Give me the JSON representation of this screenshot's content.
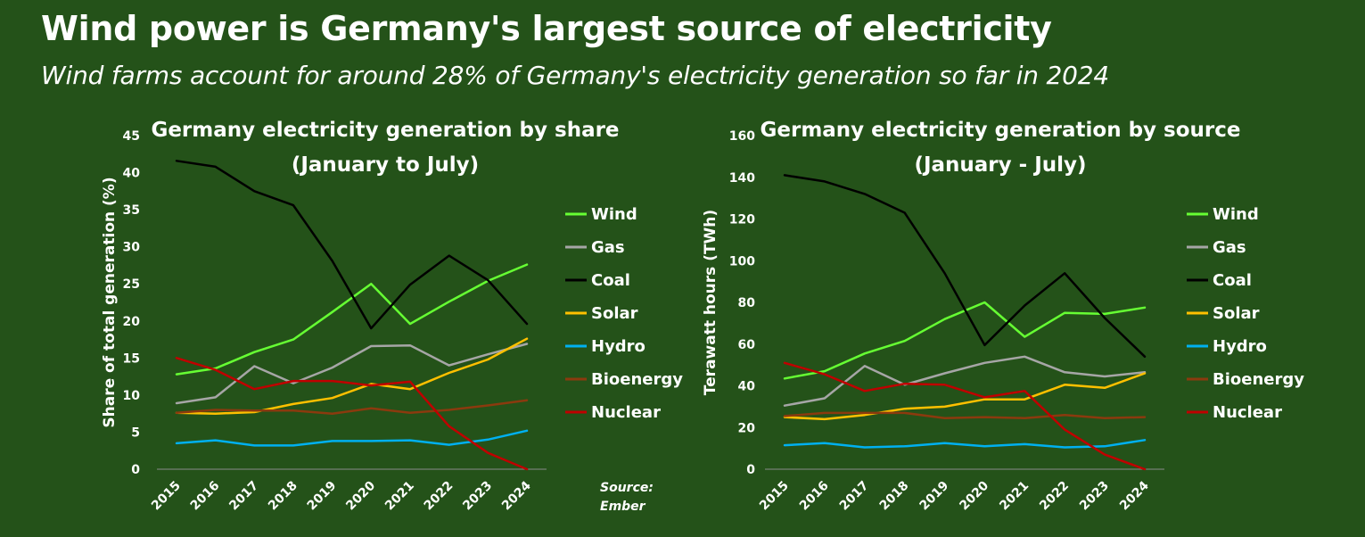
{
  "title": "Wind power is Germany's largest source of electricity",
  "subtitle": "Wind farms account for around 28% of Germany's electricity generation so far in 2024",
  "source_line1": "Source:",
  "source_line2": "Ember",
  "colors": {
    "background": "#245219",
    "Wind": "#66ff33",
    "Gas": "#a6a6a6",
    "Coal": "#000000",
    "Solar": "#ffc000",
    "Hydro": "#00b0f0",
    "Bioenergy": "#8b3a0e",
    "Nuclear": "#c00000"
  },
  "chart_data": [
    {
      "type": "line",
      "title_line1": "Germany electricity generation by share",
      "title_line2": "(January to July)",
      "xlabel": "",
      "ylabel": "Share of total generation (%)",
      "ylim": [
        0,
        45
      ],
      "yticks": [
        0,
        5,
        10,
        15,
        20,
        25,
        30,
        35,
        40,
        45
      ],
      "categories": [
        "2015",
        "2016",
        "2017",
        "2018",
        "2019",
        "2020",
        "2021",
        "2022",
        "2023",
        "2024"
      ],
      "series": [
        {
          "name": "Wind",
          "values": [
            12.8,
            13.6,
            15.8,
            17.5,
            21.2,
            25.0,
            19.6,
            22.6,
            25.4,
            27.6
          ]
        },
        {
          "name": "Gas",
          "values": [
            8.9,
            9.7,
            13.9,
            11.6,
            13.7,
            16.6,
            16.7,
            14.0,
            15.5,
            16.9
          ]
        },
        {
          "name": "Coal",
          "values": [
            41.6,
            40.8,
            37.5,
            35.6,
            28.1,
            19.0,
            24.9,
            28.8,
            25.5,
            19.6
          ]
        },
        {
          "name": "Solar",
          "values": [
            7.6,
            7.5,
            7.7,
            8.8,
            9.6,
            11.5,
            10.8,
            13.0,
            14.8,
            17.6
          ]
        },
        {
          "name": "Hydro",
          "values": [
            3.5,
            3.9,
            3.2,
            3.2,
            3.8,
            3.8,
            3.9,
            3.3,
            4.0,
            5.2
          ]
        },
        {
          "name": "Bioenergy",
          "values": [
            7.6,
            8.0,
            7.9,
            7.9,
            7.5,
            8.2,
            7.6,
            8.0,
            8.6,
            9.3
          ]
        },
        {
          "name": "Nuclear",
          "values": [
            15.0,
            13.4,
            10.8,
            11.9,
            11.9,
            11.3,
            11.8,
            5.8,
            2.2,
            0.0
          ]
        }
      ],
      "legend": [
        "Wind",
        "Gas",
        "Coal",
        "Solar",
        "Hydro",
        "Bioenergy",
        "Nuclear"
      ],
      "legend_position": "right"
    },
    {
      "type": "line",
      "title_line1": "Germany electricity generation by source",
      "title_line2": "(January - July)",
      "xlabel": "",
      "ylabel": "Terawatt hours (TWh)",
      "ylim": [
        0,
        160
      ],
      "yticks": [
        0,
        20,
        40,
        60,
        80,
        100,
        120,
        140,
        160
      ],
      "categories": [
        "2015",
        "2016",
        "2017",
        "2018",
        "2019",
        "2020",
        "2021",
        "2022",
        "2023",
        "2024"
      ],
      "series": [
        {
          "name": "Wind",
          "values": [
            43.5,
            47,
            55.5,
            61.5,
            72,
            80,
            63.5,
            75,
            74.5,
            77.5
          ]
        },
        {
          "name": "Gas",
          "values": [
            30.5,
            34,
            49.5,
            40.5,
            46,
            51,
            54,
            46.5,
            44.5,
            46.5
          ]
        },
        {
          "name": "Coal",
          "values": [
            141,
            138,
            132,
            123,
            94,
            59.5,
            78.5,
            94,
            72.5,
            54
          ]
        },
        {
          "name": "Solar",
          "values": [
            25,
            24,
            26,
            29,
            30,
            33.5,
            33.5,
            40.5,
            39,
            46
          ]
        },
        {
          "name": "Hydro",
          "values": [
            11.5,
            12.5,
            10.5,
            11,
            12.5,
            11,
            12,
            10.5,
            11,
            14
          ]
        },
        {
          "name": "Bioenergy",
          "values": [
            25.5,
            27,
            27,
            27,
            24.5,
            25,
            24.5,
            26,
            24.5,
            25
          ]
        },
        {
          "name": "Nuclear",
          "values": [
            51,
            45.5,
            37.5,
            41,
            40.5,
            34.5,
            37.5,
            19,
            7,
            0
          ]
        }
      ],
      "legend": [
        "Wind",
        "Gas",
        "Coal",
        "Solar",
        "Hydro",
        "Bioenergy",
        "Nuclear"
      ],
      "legend_position": "right"
    }
  ]
}
